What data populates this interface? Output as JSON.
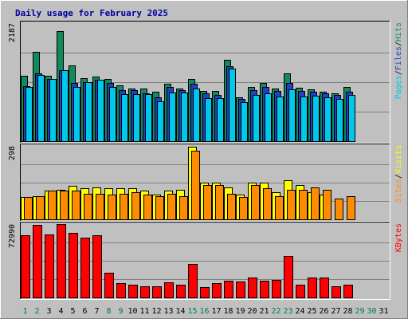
{
  "chart_data": {
    "type": "bar",
    "title": "Daily usage for February 2025",
    "x": [
      "1",
      "2",
      "3",
      "4",
      "5",
      "6",
      "7",
      "8",
      "9",
      "10",
      "11",
      "12",
      "13",
      "14",
      "15",
      "16",
      "17",
      "18",
      "19",
      "20",
      "21",
      "22",
      "23",
      "24",
      "25",
      "26",
      "27",
      "28",
      "29",
      "30",
      "31"
    ],
    "weekend_days": [
      "1",
      "2",
      "8",
      "9",
      "15",
      "16",
      "22",
      "23",
      "29",
      "30"
    ],
    "panels": [
      {
        "ylabel_parts": [
          "Pages",
          "Files",
          "Hits"
        ],
        "ylabel_colors": [
          "#00c8e8",
          "#1f40c8",
          "#118a5c"
        ],
        "ymax_label": "2187",
        "ylim": [
          0,
          2187
        ],
        "series": [
          {
            "name": "Hits",
            "color": "#118a5c",
            "values": [
              1210,
              1660,
              1210,
              2040,
              1400,
              1170,
              1200,
              1150,
              1040,
              980,
              970,
              920,
              1070,
              980,
              1150,
              930,
              930,
              1500,
              820,
              1000,
              1080,
              980,
              1250,
              990,
              960,
              910,
              890,
              1000,
              null,
              null,
              null
            ]
          },
          {
            "name": "Files",
            "color": "#1f40c8",
            "values": [
              1020,
              1260,
              1150,
              1320,
              1080,
              1100,
              1140,
              1080,
              950,
              940,
              880,
              820,
              1000,
              940,
              1060,
              880,
              850,
              1390,
              790,
              950,
              1010,
              930,
              1080,
              930,
              920,
              880,
              860,
              910,
              null,
              null,
              null
            ]
          },
          {
            "name": "Pages",
            "color": "#00c8e8",
            "values": [
              1010,
              1220,
              1150,
              1320,
              1000,
              1090,
              1140,
              1010,
              870,
              870,
              870,
              740,
              900,
              900,
              980,
              800,
              800,
              1340,
              730,
              860,
              880,
              830,
              960,
              830,
              840,
              820,
              780,
              850,
              null,
              null,
              null
            ]
          }
        ]
      },
      {
        "ylabel_parts": [
          "Sites",
          "Visits"
        ],
        "ylabel_colors": [
          "#ff8c00",
          "#ffff00"
        ],
        "ymax_label": "298",
        "ylim": [
          0,
          298
        ],
        "series": [
          {
            "name": "Visits",
            "color": "#ffff00",
            "values": [
              90,
              95,
              115,
              120,
              135,
              125,
              130,
              125,
              125,
              125,
              115,
              100,
              115,
              120,
              295,
              150,
              150,
              130,
              100,
              150,
              150,
              110,
              160,
              140,
              110,
              100,
              null,
              null,
              null,
              null,
              null
            ]
          },
          {
            "name": "Sites",
            "color": "#ff8c00",
            "values": [
              90,
              95,
              115,
              115,
              115,
              105,
              105,
              100,
              105,
              110,
              100,
              95,
              105,
              95,
              280,
              140,
              140,
              105,
              90,
              140,
              125,
              95,
              120,
              120,
              130,
              120,
              85,
              95,
              null,
              null,
              null
            ]
          }
        ]
      },
      {
        "ylabel_parts": [
          "KBytes"
        ],
        "ylabel_colors": [
          "#ff0000"
        ],
        "ymax_label": "72990",
        "ylim": [
          0,
          72990
        ],
        "series": [
          {
            "name": "KBytes",
            "color": "#ff0000",
            "values": [
              61500,
              72000,
              63000,
              73000,
              64500,
              59500,
              61500,
              24500,
              14000,
              13000,
              11500,
              11500,
              15000,
              13000,
              33500,
              10500,
              14000,
              17000,
              15500,
              19500,
              16500,
              17500,
              41000,
              12500,
              19500,
              20000,
              11500,
              12500,
              null,
              null,
              null
            ]
          }
        ]
      }
    ]
  }
}
